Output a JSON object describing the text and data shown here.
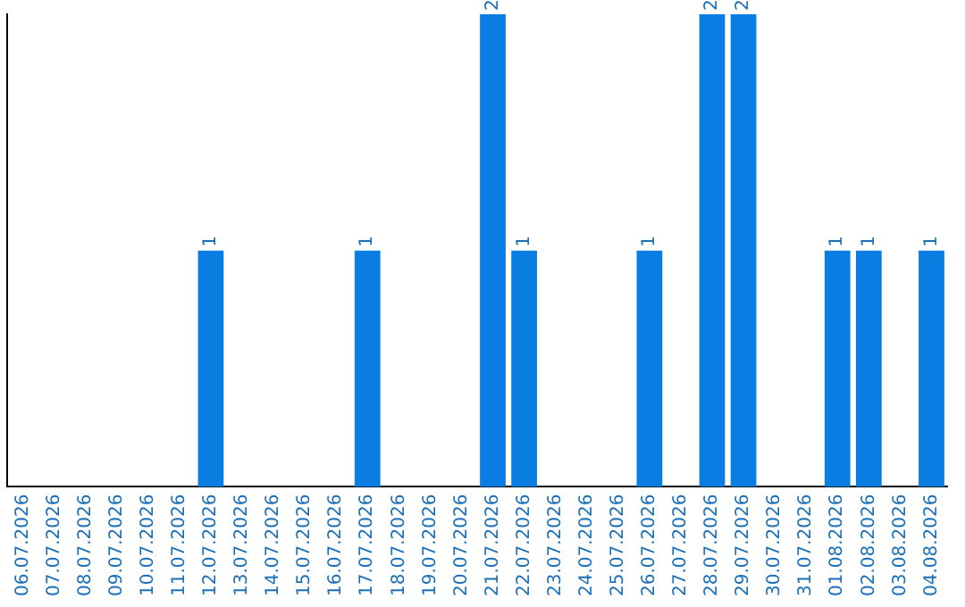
{
  "chart_data": {
    "type": "bar",
    "categories": [
      "06.07.2026",
      "07.07.2026",
      "08.07.2026",
      "09.07.2026",
      "10.07.2026",
      "11.07.2026",
      "12.07.2026",
      "13.07.2026",
      "14.07.2026",
      "15.07.2026",
      "16.07.2026",
      "17.07.2026",
      "18.07.2026",
      "19.07.2026",
      "20.07.2026",
      "21.07.2026",
      "22.07.2026",
      "23.07.2026",
      "24.07.2026",
      "25.07.2026",
      "26.07.2026",
      "27.07.2026",
      "28.07.2026",
      "29.07.2026",
      "30.07.2026",
      "31.07.2026",
      "01.08.2026",
      "02.08.2026",
      "03.08.2026",
      "04.08.2026"
    ],
    "values": [
      0,
      0,
      0,
      0,
      0,
      0,
      1,
      0,
      0,
      0,
      0,
      1,
      0,
      0,
      0,
      2,
      1,
      0,
      0,
      0,
      1,
      0,
      2,
      2,
      0,
      0,
      1,
      1,
      0,
      1
    ],
    "value_labels": [
      null,
      null,
      null,
      null,
      null,
      null,
      "1",
      null,
      null,
      null,
      null,
      "1",
      null,
      null,
      null,
      "2",
      "1",
      null,
      null,
      null,
      "1",
      null,
      "2",
      "2",
      null,
      null,
      "1",
      "1",
      null,
      "1"
    ],
    "color": "#0a7de2",
    "ylim": [
      0,
      2
    ],
    "tick_labels": "x",
    "grid": false,
    "legend": false
  }
}
